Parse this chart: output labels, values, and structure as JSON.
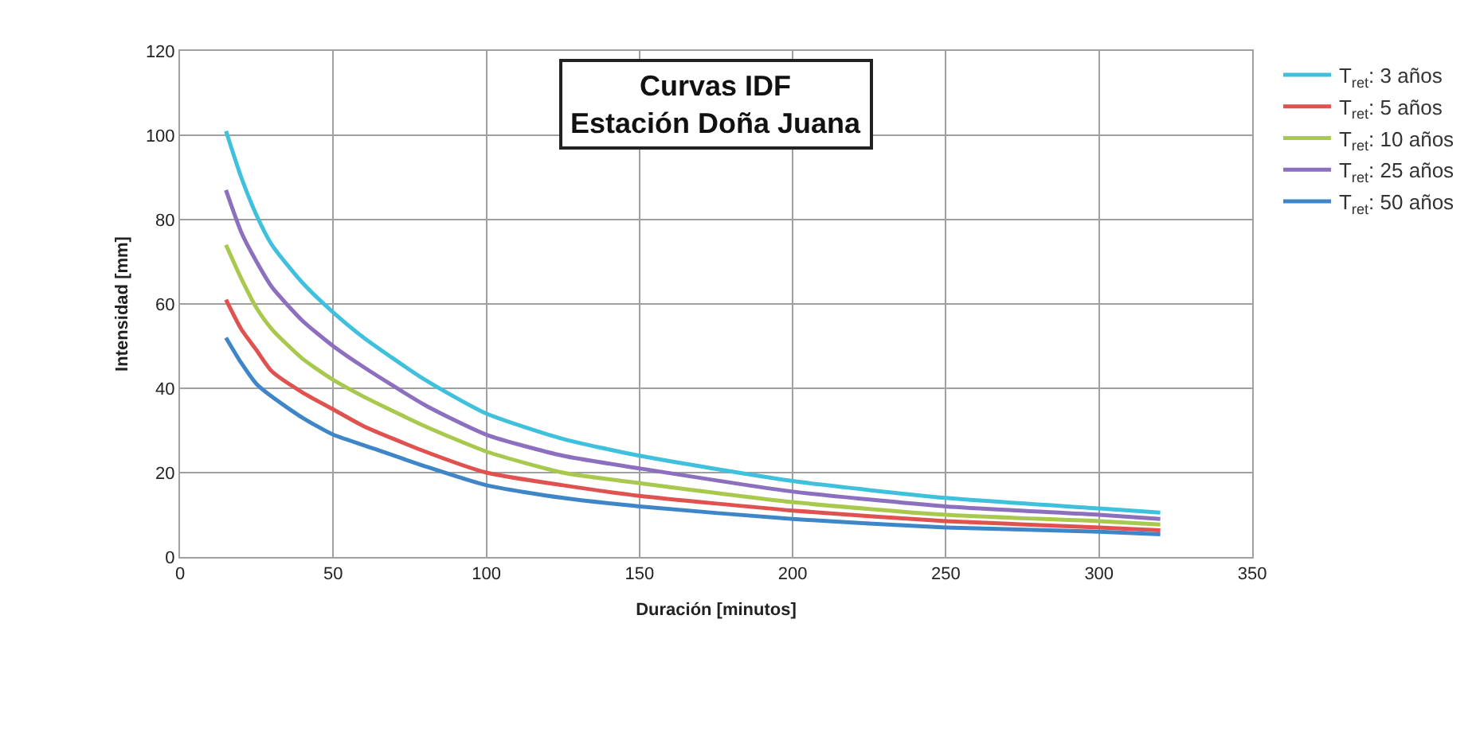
{
  "chart_data": {
    "type": "line",
    "title": "Curvas IDF\nEstación Doña Juana",
    "xlabel": "Duración [minutos]",
    "ylabel": "Intensidad [mm]",
    "x": [
      15,
      20,
      25,
      30,
      40,
      50,
      60,
      80,
      100,
      125,
      150,
      200,
      250,
      300,
      320
    ],
    "series": [
      {
        "name": "T$_{ret}$: 3 años",
        "color": "#3fc0dc",
        "values": [
          101,
          90,
          81,
          74,
          65,
          58,
          52,
          42,
          34,
          28,
          24,
          18,
          14,
          11.5,
          10.5
        ]
      },
      {
        "name": "T$_{ret}$: 5 años",
        "color": "#e0524f",
        "values": [
          61,
          54,
          49,
          44,
          39,
          35,
          31,
          25,
          20,
          17,
          14.5,
          11,
          8.5,
          7,
          6.3
        ]
      },
      {
        "name": "T$_{ret}$: 10 años",
        "color": "#a8c94e",
        "values": [
          74,
          66,
          59,
          54,
          47,
          42,
          38,
          31,
          25,
          20,
          17.5,
          13,
          10,
          8.5,
          7.7
        ]
      },
      {
        "name": "T$_{ret}$: 25 años",
        "color": "#8c6fbf",
        "values": [
          87,
          77,
          70,
          64,
          56,
          50,
          45,
          36,
          29,
          24,
          21,
          15.5,
          12,
          10,
          9
        ]
      },
      {
        "name": "T$_{ret}$: 50 años",
        "color": "#3f86c8",
        "values": [
          52,
          46,
          41,
          38,
          33,
          29,
          26.5,
          21.5,
          17,
          14,
          12,
          9,
          7,
          6,
          5.4
        ]
      }
    ],
    "xlim": [
      0,
      350
    ],
    "xticks": [
      0,
      50,
      100,
      150,
      200,
      250,
      300,
      350
    ],
    "ylim": [
      0,
      120
    ],
    "yticks": [
      0,
      20,
      40,
      60,
      80,
      100,
      120
    ],
    "grid": true,
    "legend": "right",
    "marker": "none",
    "line_style": "solid"
  }
}
